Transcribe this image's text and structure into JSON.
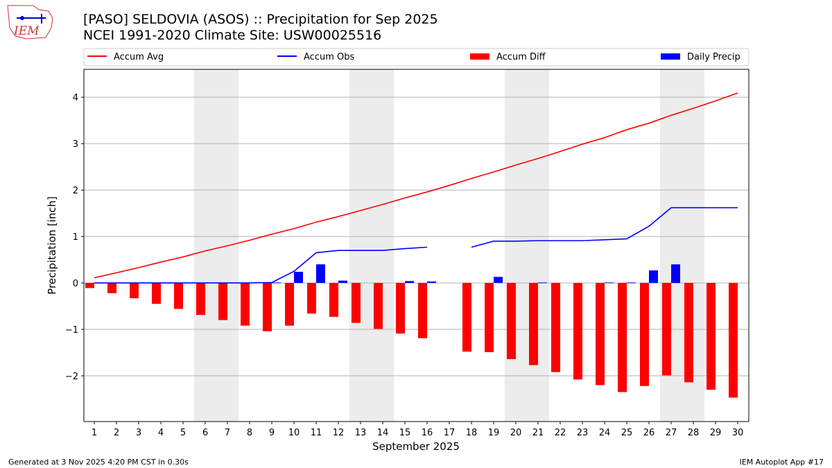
{
  "header": {
    "title": "[PASO] SELDOVIA (ASOS) :: Precipitation for Sep 2025",
    "subtitle": "NCEI 1991-2020 Climate Site: USW00025516",
    "logo_text": "IEM"
  },
  "footer": {
    "left": "Generated at 3 Nov 2025 4:20 PM CST in 0.30s",
    "right": "IEM Autoplot App #17"
  },
  "chart_data": {
    "type": "bar",
    "xlabel": "September 2025",
    "ylabel": "Precipitation [inch]",
    "x": [
      1,
      2,
      3,
      4,
      5,
      6,
      7,
      8,
      9,
      10,
      11,
      12,
      13,
      14,
      15,
      16,
      17,
      18,
      19,
      20,
      21,
      22,
      23,
      24,
      25,
      26,
      27,
      28,
      29,
      30
    ],
    "ylim": [
      -2.985,
      4.6
    ],
    "yticks": [
      -2,
      -1,
      0,
      1,
      2,
      3,
      4
    ],
    "ytick_labels": [
      "−2",
      "−1",
      "0",
      "1",
      "2",
      "3",
      "4"
    ],
    "grid": "horizontal",
    "legend": "top",
    "weekend_shading": [
      [
        6,
        7
      ],
      [
        13,
        14
      ],
      [
        20,
        21
      ],
      [
        27,
        28
      ]
    ],
    "series": [
      {
        "name": "Accum Avg",
        "type": "line",
        "color": "#ff0000",
        "values": [
          0.11,
          0.22,
          0.33,
          0.45,
          0.56,
          0.69,
          0.8,
          0.92,
          1.05,
          1.17,
          1.31,
          1.43,
          1.56,
          1.69,
          1.83,
          1.96,
          2.1,
          2.25,
          2.39,
          2.54,
          2.68,
          2.83,
          2.99,
          3.13,
          3.3,
          3.44,
          3.61,
          3.76,
          3.92,
          4.09
        ]
      },
      {
        "name": "Accum Obs",
        "type": "line",
        "color": "#0000ff",
        "values": [
          0,
          0,
          0,
          0,
          0,
          0,
          0,
          0,
          0.01,
          0.25,
          0.65,
          0.7,
          0.7,
          0.7,
          0.74,
          0.77,
          null,
          0.77,
          0.9,
          0.9,
          0.91,
          0.91,
          0.91,
          0.93,
          0.95,
          1.22,
          1.62,
          1.62,
          1.62,
          1.62
        ]
      },
      {
        "name": "Accum Diff",
        "type": "bar",
        "color": "#ff0000",
        "values": [
          -0.11,
          -0.22,
          -0.33,
          -0.45,
          -0.56,
          -0.69,
          -0.8,
          -0.92,
          -1.04,
          -0.92,
          -0.66,
          -0.73,
          -0.86,
          -0.99,
          -1.09,
          -1.19,
          null,
          -1.48,
          -1.49,
          -1.64,
          -1.77,
          -1.92,
          -2.08,
          -2.2,
          -2.35,
          -2.22,
          -1.99,
          -2.14,
          -2.3,
          -2.47
        ]
      },
      {
        "name": "Daily Precip",
        "type": "bar",
        "color": "#0000ff",
        "values": [
          0,
          0,
          0,
          0,
          0,
          0,
          0,
          0,
          0.01,
          0.24,
          0.4,
          0.05,
          0,
          0,
          0.04,
          0.03,
          null,
          0,
          0.13,
          0,
          0.01,
          0,
          0,
          0.01,
          0.01,
          0.27,
          0.4,
          0,
          0,
          0
        ]
      }
    ]
  }
}
